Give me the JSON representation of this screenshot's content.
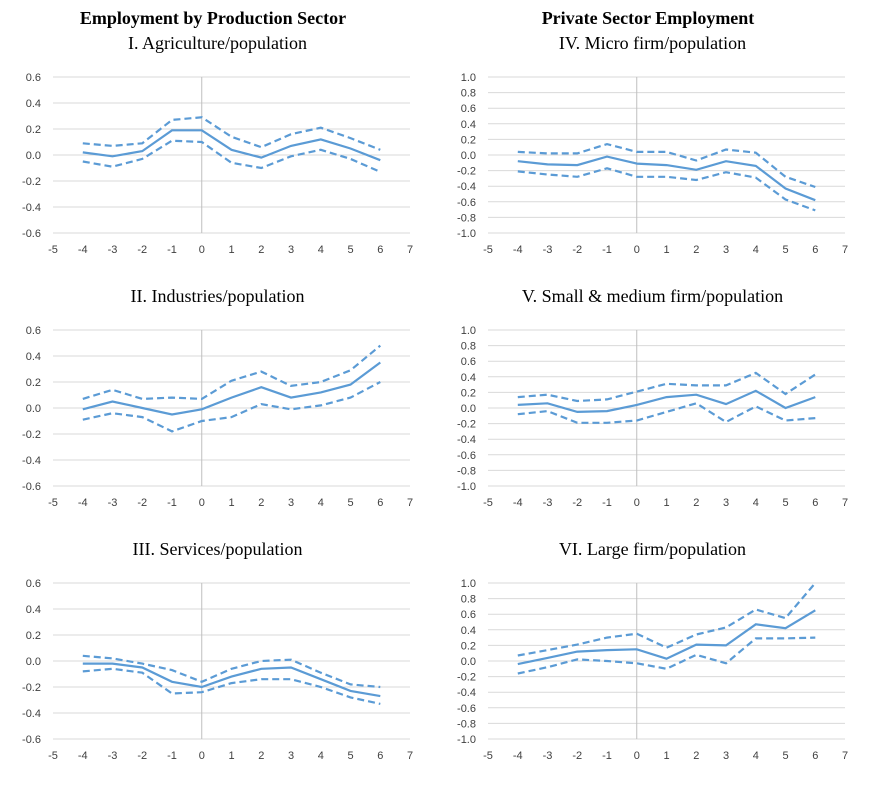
{
  "headers": {
    "left": "Employment by Production Sector",
    "right": "Private Sector Employment"
  },
  "colors": {
    "series": "#5B9BD5"
  },
  "chart_data": [
    {
      "type": "line",
      "title": "I. Agriculture/population",
      "x": [
        -4,
        -3,
        -2,
        -1,
        0,
        1,
        2,
        3,
        4,
        5,
        6
      ],
      "xlim": [
        -5,
        7
      ],
      "xticks": [
        -5,
        -4,
        -3,
        -2,
        -1,
        0,
        1,
        2,
        3,
        4,
        5,
        6,
        7
      ],
      "ylim": [
        -0.6,
        0.6
      ],
      "yticks": [
        -0.6,
        -0.4,
        -0.2,
        0.0,
        0.2,
        0.4,
        0.6
      ],
      "series": [
        {
          "values": [
            0.02,
            -0.01,
            0.03,
            0.19,
            0.19,
            0.04,
            -0.02,
            0.07,
            0.12,
            0.05,
            -0.04
          ]
        },
        {
          "values": [
            0.09,
            0.07,
            0.09,
            0.27,
            0.29,
            0.14,
            0.06,
            0.16,
            0.21,
            0.13,
            0.04
          ]
        },
        {
          "values": [
            -0.05,
            -0.09,
            -0.03,
            0.11,
            0.1,
            -0.06,
            -0.1,
            -0.01,
            0.04,
            -0.03,
            -0.13
          ]
        }
      ]
    },
    {
      "type": "line",
      "title": "IV. Micro firm/population",
      "x": [
        -4,
        -3,
        -2,
        -1,
        0,
        1,
        2,
        3,
        4,
        5,
        6
      ],
      "xlim": [
        -5,
        7
      ],
      "xticks": [
        -5,
        -4,
        -3,
        -2,
        -1,
        0,
        1,
        2,
        3,
        4,
        5,
        6,
        7
      ],
      "ylim": [
        -1.0,
        1.0
      ],
      "yticks": [
        -1.0,
        -0.8,
        -0.6,
        -0.4,
        -0.2,
        0.0,
        0.2,
        0.4,
        0.6,
        0.8,
        1.0
      ],
      "series": [
        {
          "values": [
            -0.08,
            -0.12,
            -0.13,
            -0.02,
            -0.11,
            -0.13,
            -0.19,
            -0.08,
            -0.14,
            -0.43,
            -0.58
          ]
        },
        {
          "values": [
            0.04,
            0.02,
            0.02,
            0.14,
            0.04,
            0.04,
            -0.07,
            0.07,
            0.03,
            -0.28,
            -0.41
          ]
        },
        {
          "values": [
            -0.21,
            -0.25,
            -0.28,
            -0.17,
            -0.28,
            -0.28,
            -0.32,
            -0.22,
            -0.29,
            -0.57,
            -0.71
          ]
        }
      ]
    },
    {
      "type": "line",
      "title": "II. Industries/population",
      "x": [
        -4,
        -3,
        -2,
        -1,
        0,
        1,
        2,
        3,
        4,
        5,
        6
      ],
      "xlim": [
        -5,
        7
      ],
      "xticks": [
        -5,
        -4,
        -3,
        -2,
        -1,
        0,
        1,
        2,
        3,
        4,
        5,
        6,
        7
      ],
      "ylim": [
        -0.6,
        0.6
      ],
      "yticks": [
        -0.6,
        -0.4,
        -0.2,
        0.0,
        0.2,
        0.4,
        0.6
      ],
      "series": [
        {
          "values": [
            -0.01,
            0.05,
            0.0,
            -0.05,
            -0.01,
            0.08,
            0.16,
            0.08,
            0.12,
            0.18,
            0.35
          ]
        },
        {
          "values": [
            0.07,
            0.14,
            0.07,
            0.08,
            0.07,
            0.21,
            0.28,
            0.17,
            0.2,
            0.29,
            0.48
          ]
        },
        {
          "values": [
            -0.09,
            -0.04,
            -0.07,
            -0.18,
            -0.1,
            -0.07,
            0.03,
            -0.01,
            0.02,
            0.08,
            0.2
          ]
        }
      ]
    },
    {
      "type": "line",
      "title": "V. Small & medium firm/population",
      "x": [
        -4,
        -3,
        -2,
        -1,
        0,
        1,
        2,
        3,
        4,
        5,
        6
      ],
      "xlim": [
        -5,
        7
      ],
      "xticks": [
        -5,
        -4,
        -3,
        -2,
        -1,
        0,
        1,
        2,
        3,
        4,
        5,
        6,
        7
      ],
      "ylim": [
        -1.0,
        1.0
      ],
      "yticks": [
        -1.0,
        -0.8,
        -0.6,
        -0.4,
        -0.2,
        0.0,
        0.2,
        0.4,
        0.6,
        0.8,
        1.0
      ],
      "series": [
        {
          "values": [
            0.04,
            0.06,
            -0.05,
            -0.04,
            0.04,
            0.14,
            0.17,
            0.05,
            0.22,
            0.0,
            0.14
          ]
        },
        {
          "values": [
            0.14,
            0.17,
            0.09,
            0.11,
            0.21,
            0.31,
            0.29,
            0.29,
            0.45,
            0.18,
            0.43
          ]
        },
        {
          "values": [
            -0.08,
            -0.04,
            -0.19,
            -0.19,
            -0.16,
            -0.05,
            0.06,
            -0.18,
            0.02,
            -0.16,
            -0.13
          ]
        }
      ]
    },
    {
      "type": "line",
      "title": "III. Services/population",
      "x": [
        -4,
        -3,
        -2,
        -1,
        0,
        1,
        2,
        3,
        4,
        5,
        6
      ],
      "xlim": [
        -5,
        7
      ],
      "xticks": [
        -5,
        -4,
        -3,
        -2,
        -1,
        0,
        1,
        2,
        3,
        4,
        5,
        6,
        7
      ],
      "ylim": [
        -0.6,
        0.6
      ],
      "yticks": [
        -0.6,
        -0.4,
        -0.2,
        0.0,
        0.2,
        0.4,
        0.6
      ],
      "series": [
        {
          "values": [
            -0.02,
            -0.02,
            -0.05,
            -0.16,
            -0.2,
            -0.12,
            -0.06,
            -0.05,
            -0.14,
            -0.23,
            -0.27
          ]
        },
        {
          "values": [
            0.04,
            0.02,
            -0.02,
            -0.07,
            -0.16,
            -0.06,
            0.0,
            0.01,
            -0.09,
            -0.18,
            -0.2
          ]
        },
        {
          "values": [
            -0.08,
            -0.06,
            -0.09,
            -0.25,
            -0.24,
            -0.17,
            -0.14,
            -0.14,
            -0.2,
            -0.28,
            -0.33
          ]
        }
      ]
    },
    {
      "type": "line",
      "title": "VI. Large firm/population",
      "x": [
        -4,
        -3,
        -2,
        -1,
        0,
        1,
        2,
        3,
        4,
        5,
        6
      ],
      "xlim": [
        -5,
        7
      ],
      "xticks": [
        -5,
        -4,
        -3,
        -2,
        -1,
        0,
        1,
        2,
        3,
        4,
        5,
        6,
        7
      ],
      "ylim": [
        -1.0,
        1.0
      ],
      "yticks": [
        -1.0,
        -0.8,
        -0.6,
        -0.4,
        -0.2,
        0.0,
        0.2,
        0.4,
        0.6,
        0.8,
        1.0
      ],
      "series": [
        {
          "values": [
            -0.04,
            0.04,
            0.12,
            0.14,
            0.15,
            0.03,
            0.21,
            0.2,
            0.47,
            0.42,
            0.65
          ]
        },
        {
          "values": [
            0.07,
            0.14,
            0.21,
            0.3,
            0.35,
            0.17,
            0.34,
            0.43,
            0.66,
            0.55,
            1.0
          ]
        },
        {
          "values": [
            -0.16,
            -0.08,
            0.02,
            0.0,
            -0.03,
            -0.1,
            0.08,
            -0.03,
            0.29,
            0.29,
            0.3
          ]
        }
      ]
    }
  ]
}
